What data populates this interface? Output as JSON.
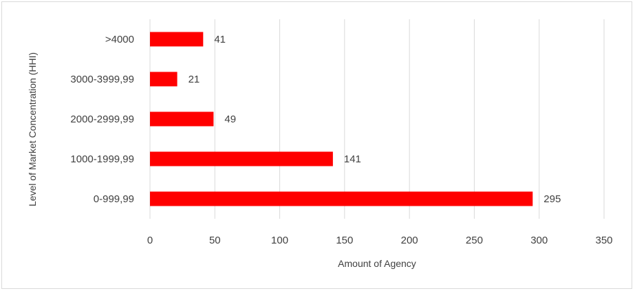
{
  "chart_data": {
    "type": "bar",
    "orientation": "horizontal",
    "categories": [
      "0-999,99",
      "1000-1999,99",
      "2000-2999,99",
      "3000-3999,99",
      ">4000"
    ],
    "values": [
      295,
      141,
      49,
      21,
      41
    ],
    "data_labels": [
      "295",
      "141",
      "49",
      "21",
      "41"
    ],
    "title": "",
    "xlabel": "Amount of Agency",
    "ylabel": "Level of Market Concentration (HHI)",
    "xlim": [
      0,
      350
    ],
    "x_ticks": [
      0,
      50,
      100,
      150,
      200,
      250,
      300,
      350
    ],
    "x_tick_labels": [
      "0",
      "50",
      "100",
      "150",
      "200",
      "250",
      "300",
      "350"
    ],
    "grid": "vertical",
    "legend": "none",
    "bar_color": "#ff0000",
    "grid_color": "#d9d9d9"
  }
}
